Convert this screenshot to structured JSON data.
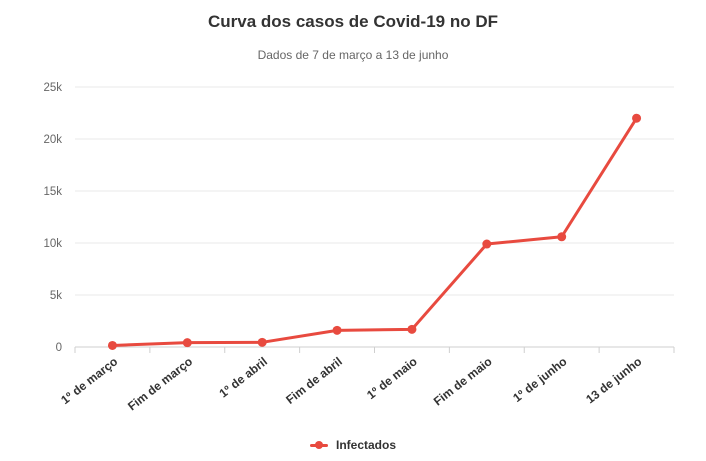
{
  "chart": {
    "title": "Curva dos casos de Covid-19 no DF",
    "subtitle": "Dados de 7 de março a 13 de junho",
    "legend_label": "Infectados"
  },
  "chart_data": {
    "type": "line",
    "title": "Curva dos casos de Covid-19 no DF",
    "subtitle": "Dados de 7 de março a 13 de junho",
    "xlabel": "",
    "ylabel": "",
    "categories": [
      "1º de março",
      "Fim de março",
      "1º de abril",
      "Fim de abril",
      "1º de maio",
      "Fim de maio",
      "1º de junho",
      "13 de junho"
    ],
    "series": [
      {
        "name": "Infectados",
        "values": [
          150,
          420,
          450,
          1600,
          1700,
          9900,
          10600,
          22000
        ],
        "color": "#e84a3f"
      }
    ],
    "ylim": [
      0,
      25000
    ],
    "yticks": [
      {
        "value": 0,
        "label": "0"
      },
      {
        "value": 5000,
        "label": "5k"
      },
      {
        "value": 10000,
        "label": "10k"
      },
      {
        "value": 15000,
        "label": "15k"
      },
      {
        "value": 20000,
        "label": "20k"
      },
      {
        "value": 25000,
        "label": "25k"
      }
    ],
    "grid": "horizontal-only",
    "legend_position": "bottom-center",
    "x_label_rotation": -38,
    "colors": {
      "line": "#e84a3f",
      "grid": "#e9e9e9",
      "axis": "#cfcfcf",
      "y_tick_label": "#666666",
      "x_tick_label": "#333333",
      "title": "#333333",
      "subtitle": "#666666",
      "background": "#ffffff"
    }
  }
}
